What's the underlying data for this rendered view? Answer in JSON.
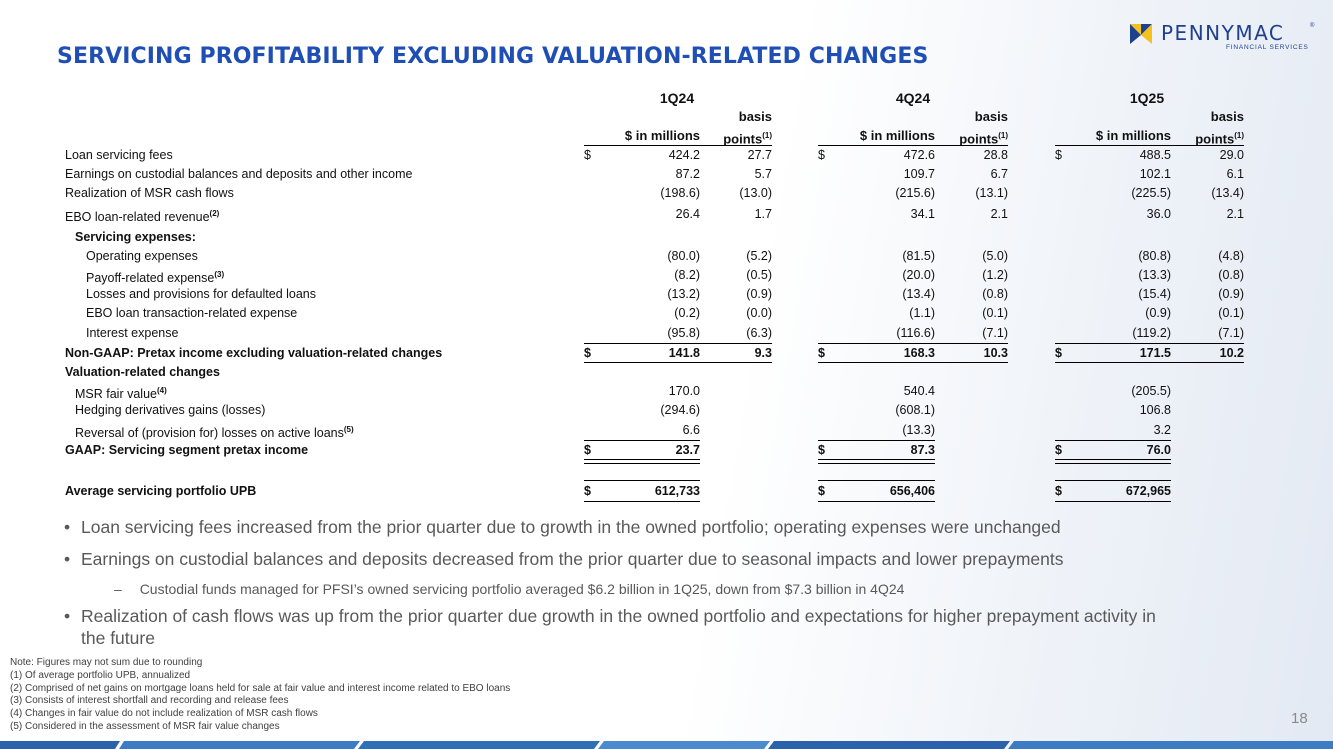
{
  "title": "SERVICING PROFITABILITY EXCLUDING VALUATION-RELATED CHANGES",
  "logo": {
    "name": "PENNYMAC",
    "sub": "FINANCIAL SERVICES",
    "reg": "®"
  },
  "table": {
    "periods": [
      "1Q24",
      "4Q24",
      "1Q25"
    ],
    "col_basis": "basis",
    "col_dollars": "$ in millions",
    "col_points": "points",
    "points_sup": "(1)",
    "dollar_sign": "$",
    "rows": [
      {
        "label": "Loan servicing fees",
        "sup": "",
        "dollar": true,
        "v": [
          "424.2",
          "27.7",
          "472.6",
          "28.8",
          "488.5",
          "29.0"
        ]
      },
      {
        "label": "Earnings on custodial balances and deposits and other income",
        "sup": "",
        "v": [
          "87.2",
          "5.7",
          "109.7",
          "6.7",
          "102.1",
          "6.1"
        ]
      },
      {
        "label": "Realization of MSR cash flows",
        "sup": "",
        "v": [
          "(198.6)",
          "(13.0)",
          "(215.6)",
          "(13.1)",
          "(225.5)",
          "(13.4)"
        ]
      },
      {
        "label": "EBO loan-related revenue",
        "sup": "(2)",
        "v": [
          "26.4",
          "1.7",
          "34.1",
          "2.1",
          "36.0",
          "2.1"
        ]
      },
      {
        "label": "Servicing expenses:",
        "sup": "",
        "v": [
          "",
          "",
          "",
          "",
          "",
          ""
        ]
      },
      {
        "label": "Operating expenses",
        "sup": "",
        "v": [
          "(80.0)",
          "(5.2)",
          "(81.5)",
          "(5.0)",
          "(80.8)",
          "(4.8)"
        ]
      },
      {
        "label": "Payoff-related expense",
        "sup": "(3)",
        "v": [
          "(8.2)",
          "(0.5)",
          "(20.0)",
          "(1.2)",
          "(13.3)",
          "(0.8)"
        ]
      },
      {
        "label": "Losses and provisions for defaulted loans",
        "sup": "",
        "v": [
          "(13.2)",
          "(0.9)",
          "(13.4)",
          "(0.8)",
          "(15.4)",
          "(0.9)"
        ]
      },
      {
        "label": "EBO loan transaction-related expense",
        "sup": "",
        "v": [
          "(0.2)",
          "(0.0)",
          "(1.1)",
          "(0.1)",
          "(0.9)",
          "(0.1)"
        ]
      },
      {
        "label": "Interest expense",
        "sup": "",
        "v": [
          "(95.8)",
          "(6.3)",
          "(116.6)",
          "(7.1)",
          "(119.2)",
          "(7.1)"
        ]
      },
      {
        "label": "Non-GAAP: Pretax income excluding valuation-related changes",
        "sup": "",
        "dollar": true,
        "v": [
          "141.8",
          "9.3",
          "168.3",
          "10.3",
          "171.5",
          "10.2"
        ]
      },
      {
        "label": "Valuation-related changes",
        "sup": "",
        "v": [
          "",
          "",
          "",
          "",
          "",
          ""
        ]
      },
      {
        "label": "MSR fair value",
        "sup": "(4)",
        "v": [
          "170.0",
          "",
          "540.4",
          "",
          "(205.5)",
          ""
        ]
      },
      {
        "label": "Hedging derivatives gains (losses)",
        "sup": "",
        "v": [
          "(294.6)",
          "",
          "(608.1)",
          "",
          "106.8",
          ""
        ]
      },
      {
        "label": "Reversal of (provision for) losses on active loans",
        "sup": "(5)",
        "v": [
          "6.6",
          "",
          "(13.3)",
          "",
          "3.2",
          ""
        ]
      },
      {
        "label": "GAAP: Servicing segment pretax income",
        "sup": "",
        "dollar": true,
        "v": [
          "23.7",
          "",
          "87.3",
          "",
          "76.0",
          ""
        ]
      },
      {
        "label": "Average servicing portfolio UPB",
        "sup": "",
        "dollar": true,
        "v": [
          "612,733",
          "",
          "656,406",
          "",
          "672,965",
          ""
        ]
      }
    ]
  },
  "bullets": [
    "Loan servicing fees increased from the prior quarter due to growth in the owned portfolio; operating expenses were unchanged",
    "Earnings on custodial balances and deposits decreased from the prior quarter due to seasonal impacts and lower prepayments",
    "Realization of cash flows was up from the prior quarter due growth in the owned portfolio and expectations for higher prepayment activity in",
    "the future"
  ],
  "bullet_dot": "•",
  "sub_bullet": {
    "dash": "–",
    "text": "Custodial funds managed for PFSI’s owned servicing portfolio averaged $6.2 billion in 1Q25, down from $7.3 billion in 4Q24"
  },
  "notes": [
    "Note: Figures may not sum due to rounding",
    "(1) Of average portfolio UPB, annualized",
    "(2) Comprised of net gains on mortgage loans held for sale at fair value and interest income related to EBO loans",
    "(3) Consists of interest shortfall and recording and release fees",
    "(4) Changes in fair value do not include realization of MSR cash flows",
    "(5) Considered in the assessment of MSR fair value changes"
  ],
  "page_number": "18",
  "colors": {
    "title": "#1f4fb4",
    "logo_yellow": "#f4c21b",
    "logo_blue": "#1f3f8f",
    "band_blue": "#2f6fb8"
  }
}
